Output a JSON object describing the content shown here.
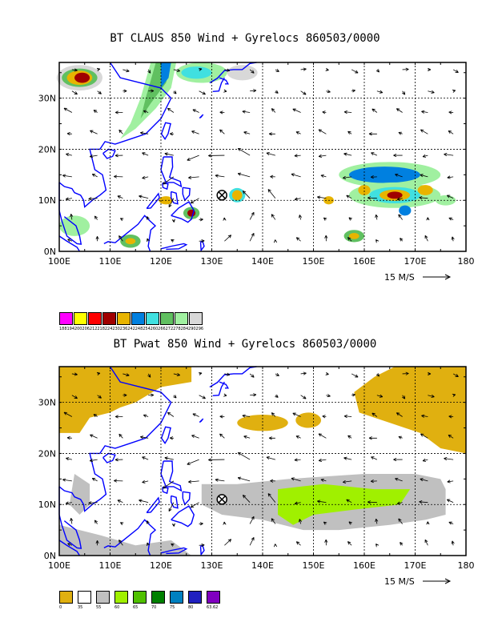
{
  "panel1": {
    "title": "BT CLAUS 850 Wind + Gyrelocs 860503/0000",
    "lat_labels": [
      "30N",
      "20N",
      "10N",
      "0N"
    ],
    "lon_labels": [
      "100E",
      "110E",
      "120E",
      "130E",
      "140E",
      "150E",
      "160E",
      "170E",
      "180"
    ],
    "vector_ref": "15 M/S",
    "legend_colors": [
      "#ff00ff",
      "#ffff00",
      "#ff0000",
      "#a00000",
      "#e8b400",
      "#0080e0",
      "#40e0e0",
      "#60c060",
      "#a0f0a0",
      "#d8d8d8"
    ],
    "legend_labels": [
      "188",
      "194",
      "200",
      "206",
      "212",
      "218",
      "224",
      "230",
      "236",
      "242",
      "248",
      "254",
      "260",
      "266",
      "272",
      "278",
      "284",
      "290",
      "296"
    ],
    "gyre_center": {
      "lon": 132,
      "lat": 11
    }
  },
  "panel2": {
    "title": "BT Pwat 850 Wind + Gyrelocs 860503/0000",
    "lat_labels": [
      "30N",
      "20N",
      "10N",
      "0N"
    ],
    "lon_labels": [
      "100E",
      "110E",
      "120E",
      "130E",
      "140E",
      "150E",
      "160E",
      "170E",
      "180"
    ],
    "vector_ref": "15 M/S",
    "legend_colors": [
      "#e0b010",
      "#ffffff",
      "#c0c0c0",
      "#a0f000",
      "#50c000",
      "#008000",
      "#0080c0",
      "#2020c0",
      "#8000c0"
    ],
    "legend_labels": [
      "0",
      "35",
      "55",
      "60",
      "65",
      "70",
      "75",
      "80",
      "63.62"
    ],
    "gyre_center": {
      "lon": 132,
      "lat": 11
    }
  }
}
